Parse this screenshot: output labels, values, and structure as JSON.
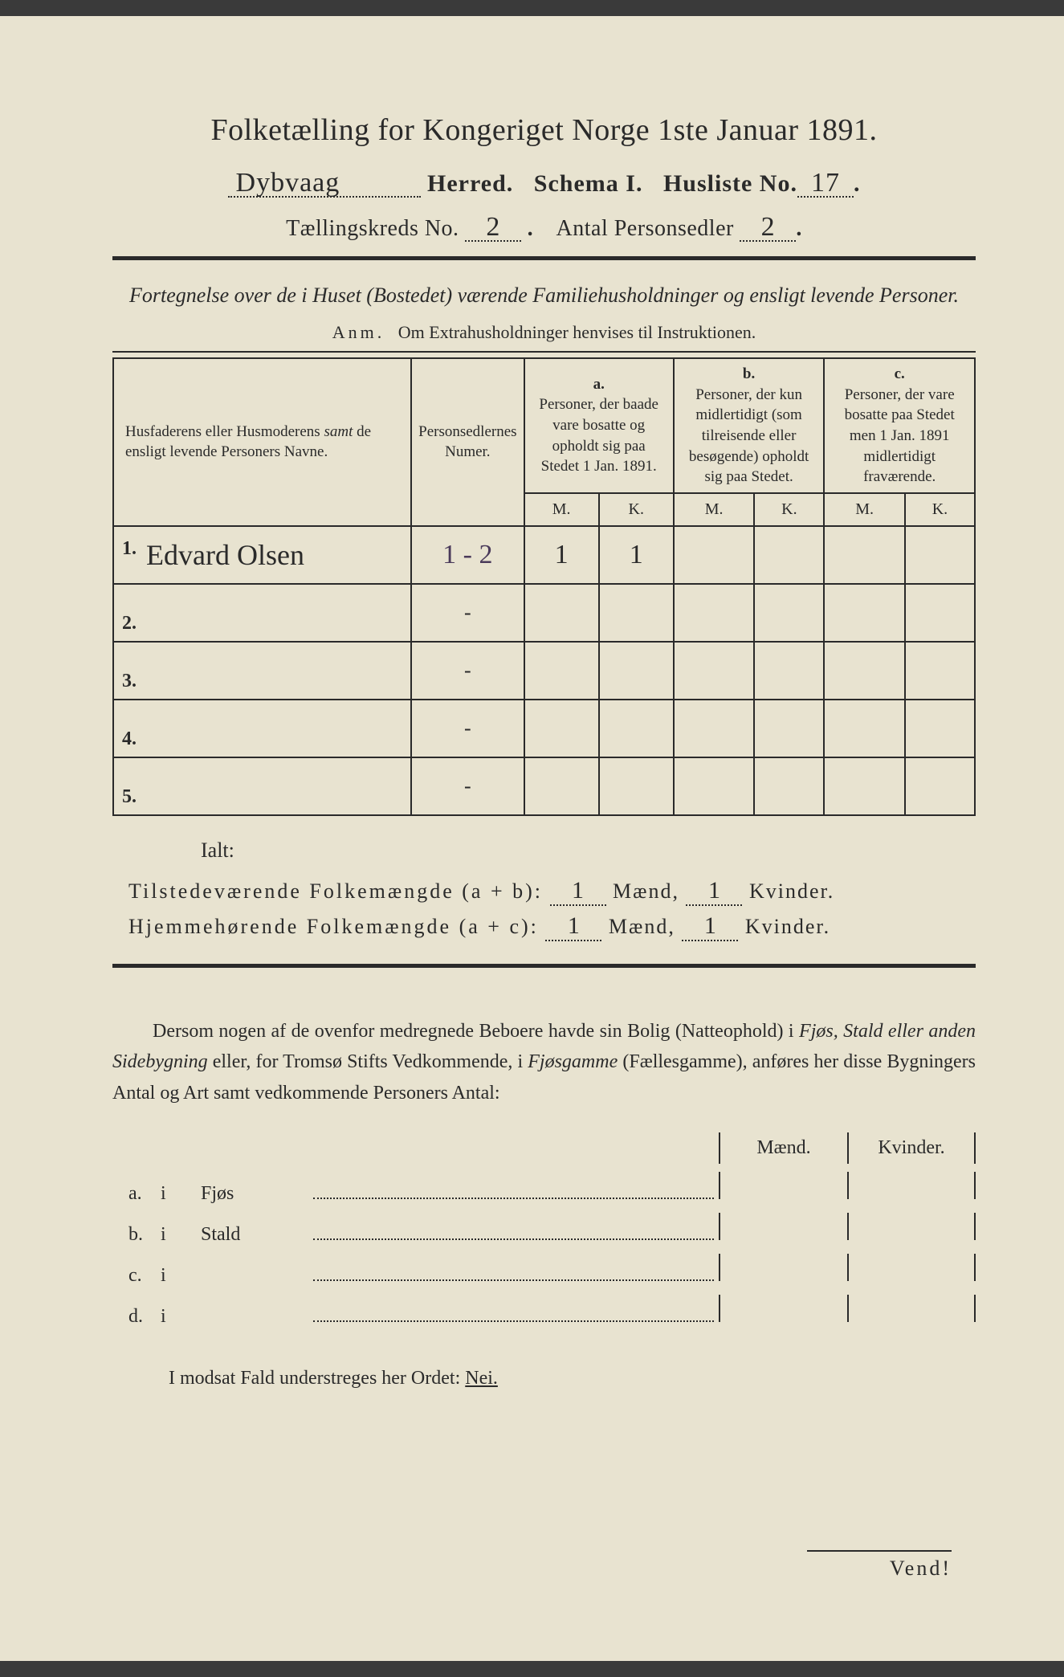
{
  "title": "Folketælling for Kongeriget Norge 1ste Januar 1891.",
  "line2": {
    "herred_value": "Dybvaag",
    "herred_label": "Herred.",
    "schema_label": "Schema I.",
    "husliste_label": "Husliste No.",
    "husliste_value": "17"
  },
  "line3": {
    "kreds_label": "Tællingskreds No.",
    "kreds_value": "2",
    "antal_label": "Antal Personsedler",
    "antal_value": "2"
  },
  "subtitle": "Fortegnelse over de i Huset (Bostedet) værende Familiehusholdninger og ensligt levende Personer.",
  "anm_label": "Anm.",
  "anm_text": "Om Extrahusholdninger henvises til Instruktionen.",
  "table": {
    "col_name_header": "Husfaderens eller Husmoderens samt de ensligt levende Personers Navne.",
    "col_num_header": "Personsedlernes Numer.",
    "group_a": {
      "letter": "a.",
      "text": "Personer, der baade vare bosatte og opholdt sig paa Stedet 1 Jan. 1891."
    },
    "group_b": {
      "letter": "b.",
      "text": "Personer, der kun midlertidigt (som tilreisende eller besøgende) opholdt sig paa Stedet."
    },
    "group_c": {
      "letter": "c.",
      "text": "Personer, der vare bosatte paa Stedet men 1 Jan. 1891 midlertidigt fraværende."
    },
    "mk_m": "M.",
    "mk_k": "K.",
    "rows": [
      {
        "num": "1.",
        "name": "Edvard Olsen",
        "pnum": "1 - 2",
        "a_m": "1",
        "a_k": "1",
        "b_m": "",
        "b_k": "",
        "c_m": "",
        "c_k": ""
      },
      {
        "num": "2.",
        "name": "",
        "pnum": "-",
        "a_m": "",
        "a_k": "",
        "b_m": "",
        "b_k": "",
        "c_m": "",
        "c_k": ""
      },
      {
        "num": "3.",
        "name": "",
        "pnum": "-",
        "a_m": "",
        "a_k": "",
        "b_m": "",
        "b_k": "",
        "c_m": "",
        "c_k": ""
      },
      {
        "num": "4.",
        "name": "",
        "pnum": "-",
        "a_m": "",
        "a_k": "",
        "b_m": "",
        "b_k": "",
        "c_m": "",
        "c_k": ""
      },
      {
        "num": "5.",
        "name": "",
        "pnum": "-",
        "a_m": "",
        "a_k": "",
        "b_m": "",
        "b_k": "",
        "c_m": "",
        "c_k": ""
      }
    ]
  },
  "ialt": "Ialt:",
  "totals": {
    "tilstede_label": "Tilstedeværende Folkemængde (a + b):",
    "hjemme_label": "Hjemmehørende Folkemængde (a + c):",
    "maend": "Mænd,",
    "kvinder": "Kvinder.",
    "tilstede_m": "1",
    "tilstede_k": "1",
    "hjemme_m": "1",
    "hjemme_k": "1"
  },
  "para": {
    "p1": "Dersom nogen af de ovenfor medregnede Beboere havde sin Bolig (Natteophold) i ",
    "p2": "Fjøs, Stald eller anden Sidebygning",
    "p3": " eller, for Tromsø Stifts Vedkommende, i ",
    "p4": "Fjøsgamme",
    "p5": " (Fællesgamme), anføres her disse Bygningers Antal og Art samt vedkommende Personers Antal:"
  },
  "bygn": {
    "maend": "Mænd.",
    "kvinder": "Kvinder.",
    "rows": [
      {
        "lbl": "a.",
        "i": "i",
        "what": "Fjøs"
      },
      {
        "lbl": "b.",
        "i": "i",
        "what": "Stald"
      },
      {
        "lbl": "c.",
        "i": "i",
        "what": ""
      },
      {
        "lbl": "d.",
        "i": "i",
        "what": ""
      }
    ]
  },
  "nei_line": {
    "text": "I modsat Fald understreges her Ordet: ",
    "nei": "Nei."
  },
  "vend": "Vend!",
  "colors": {
    "paper": "#e8e3d0",
    "ink": "#2a2a2a",
    "pencil_purple": "#4a3a5a"
  }
}
